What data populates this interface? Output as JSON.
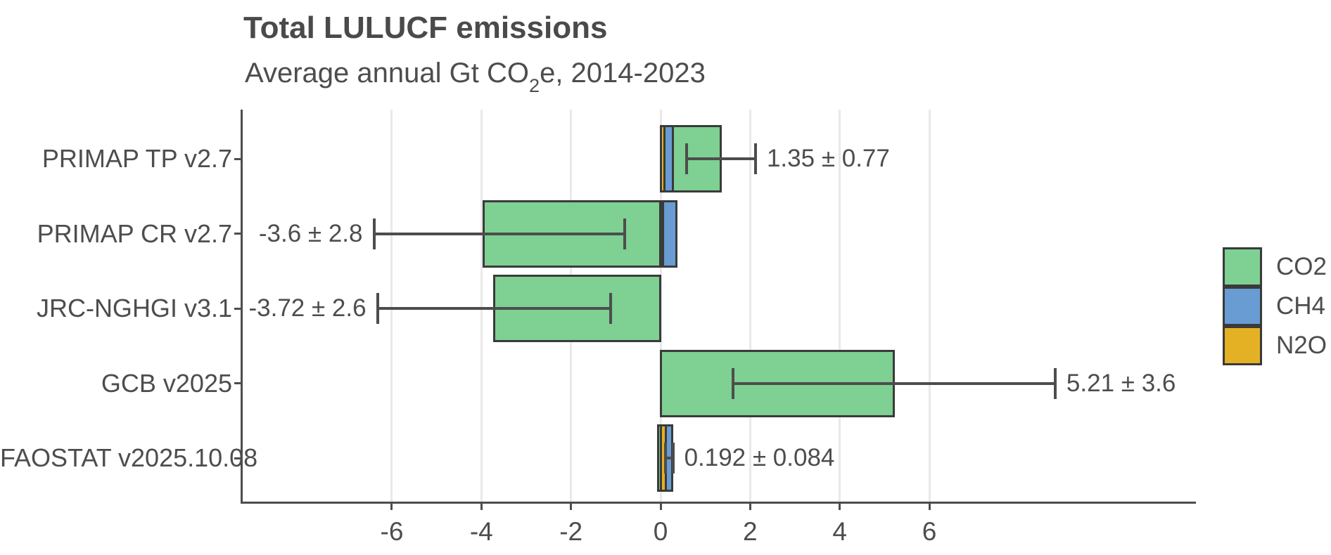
{
  "title": "Total LULUCF emissions",
  "subtitle": {
    "prefix": "Average annual Gt CO",
    "sub": "2",
    "suffix": "e, 2014-2023"
  },
  "colors": {
    "co2": "#7ed093",
    "ch4": "#689cd2",
    "n2o": "#e3b123",
    "bar_outline": "#3a3a3a",
    "error_bar": "#4d4d4d",
    "axis": "#4d4d4d",
    "text": "#4d4d4d",
    "grid": "#e9e9e9",
    "background": "#ffffff"
  },
  "chart_data": {
    "type": "bar",
    "orientation": "horizontal",
    "stacked": true,
    "title": "Total LULUCF emissions",
    "subtitle": "Average annual Gt CO2e, 2014-2023",
    "xlabel": "",
    "ylabel": "",
    "grid": true,
    "legend_position": "right",
    "legend": [
      "CO2",
      "CH4",
      "N2O"
    ],
    "categories": [
      "PRIMAP TP v2.7",
      "PRIMAP CR v2.7",
      "JRC-NGHGI v3.1",
      "GCB v2025",
      "FAOSTAT v2025.10.08"
    ],
    "series": [
      {
        "name": "CO2",
        "color": "#7ed093",
        "values": [
          1.08,
          -3.95,
          -3.72,
          5.21,
          -0.06
        ]
      },
      {
        "name": "CH4",
        "color": "#689cd2",
        "values": [
          0.19,
          0.29,
          0,
          0,
          0.142
        ]
      },
      {
        "name": "N2O",
        "color": "#e3b123",
        "values": [
          0.08,
          0.06,
          0,
          0,
          0.11
        ]
      }
    ],
    "totals": [
      1.35,
      -3.6,
      -3.72,
      5.21,
      0.192
    ],
    "errors": [
      0.77,
      2.8,
      2.6,
      3.6,
      0.084
    ],
    "value_labels": [
      "1.35 ± 0.77",
      "-3.6 ± 2.8",
      "-3.72 ± 2.6",
      "5.21 ± 3.6",
      "0.192 ± 0.084"
    ],
    "x_ticks": [
      -6,
      -4,
      -2,
      0,
      2,
      4,
      6
    ],
    "xlim": [
      -9.35,
      11.95
    ]
  }
}
